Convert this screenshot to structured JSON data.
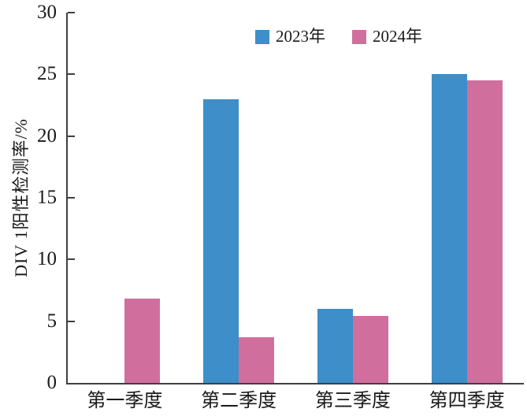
{
  "chart_data": {
    "type": "bar",
    "title": "",
    "ylabel": "DIV 1阳性检测率/%",
    "xlabel": "",
    "categories": [
      "第一季度",
      "第二季度",
      "第三季度",
      "第四季度"
    ],
    "series": [
      {
        "name": "2023年",
        "color": "#3D8EC9",
        "values": [
          0,
          23.0,
          6.0,
          25.0
        ]
      },
      {
        "name": "2024年",
        "color": "#D06F9E",
        "values": [
          6.8,
          3.7,
          5.4,
          24.5
        ]
      }
    ],
    "ylim": [
      0,
      30
    ],
    "yticks": [
      30,
      25,
      20,
      15,
      10,
      5,
      0
    ],
    "grid": false,
    "legend_position": "top-center"
  },
  "colors": {
    "axis": "#404040",
    "text": "#1A1A1A",
    "background": "#FFFFFF"
  }
}
